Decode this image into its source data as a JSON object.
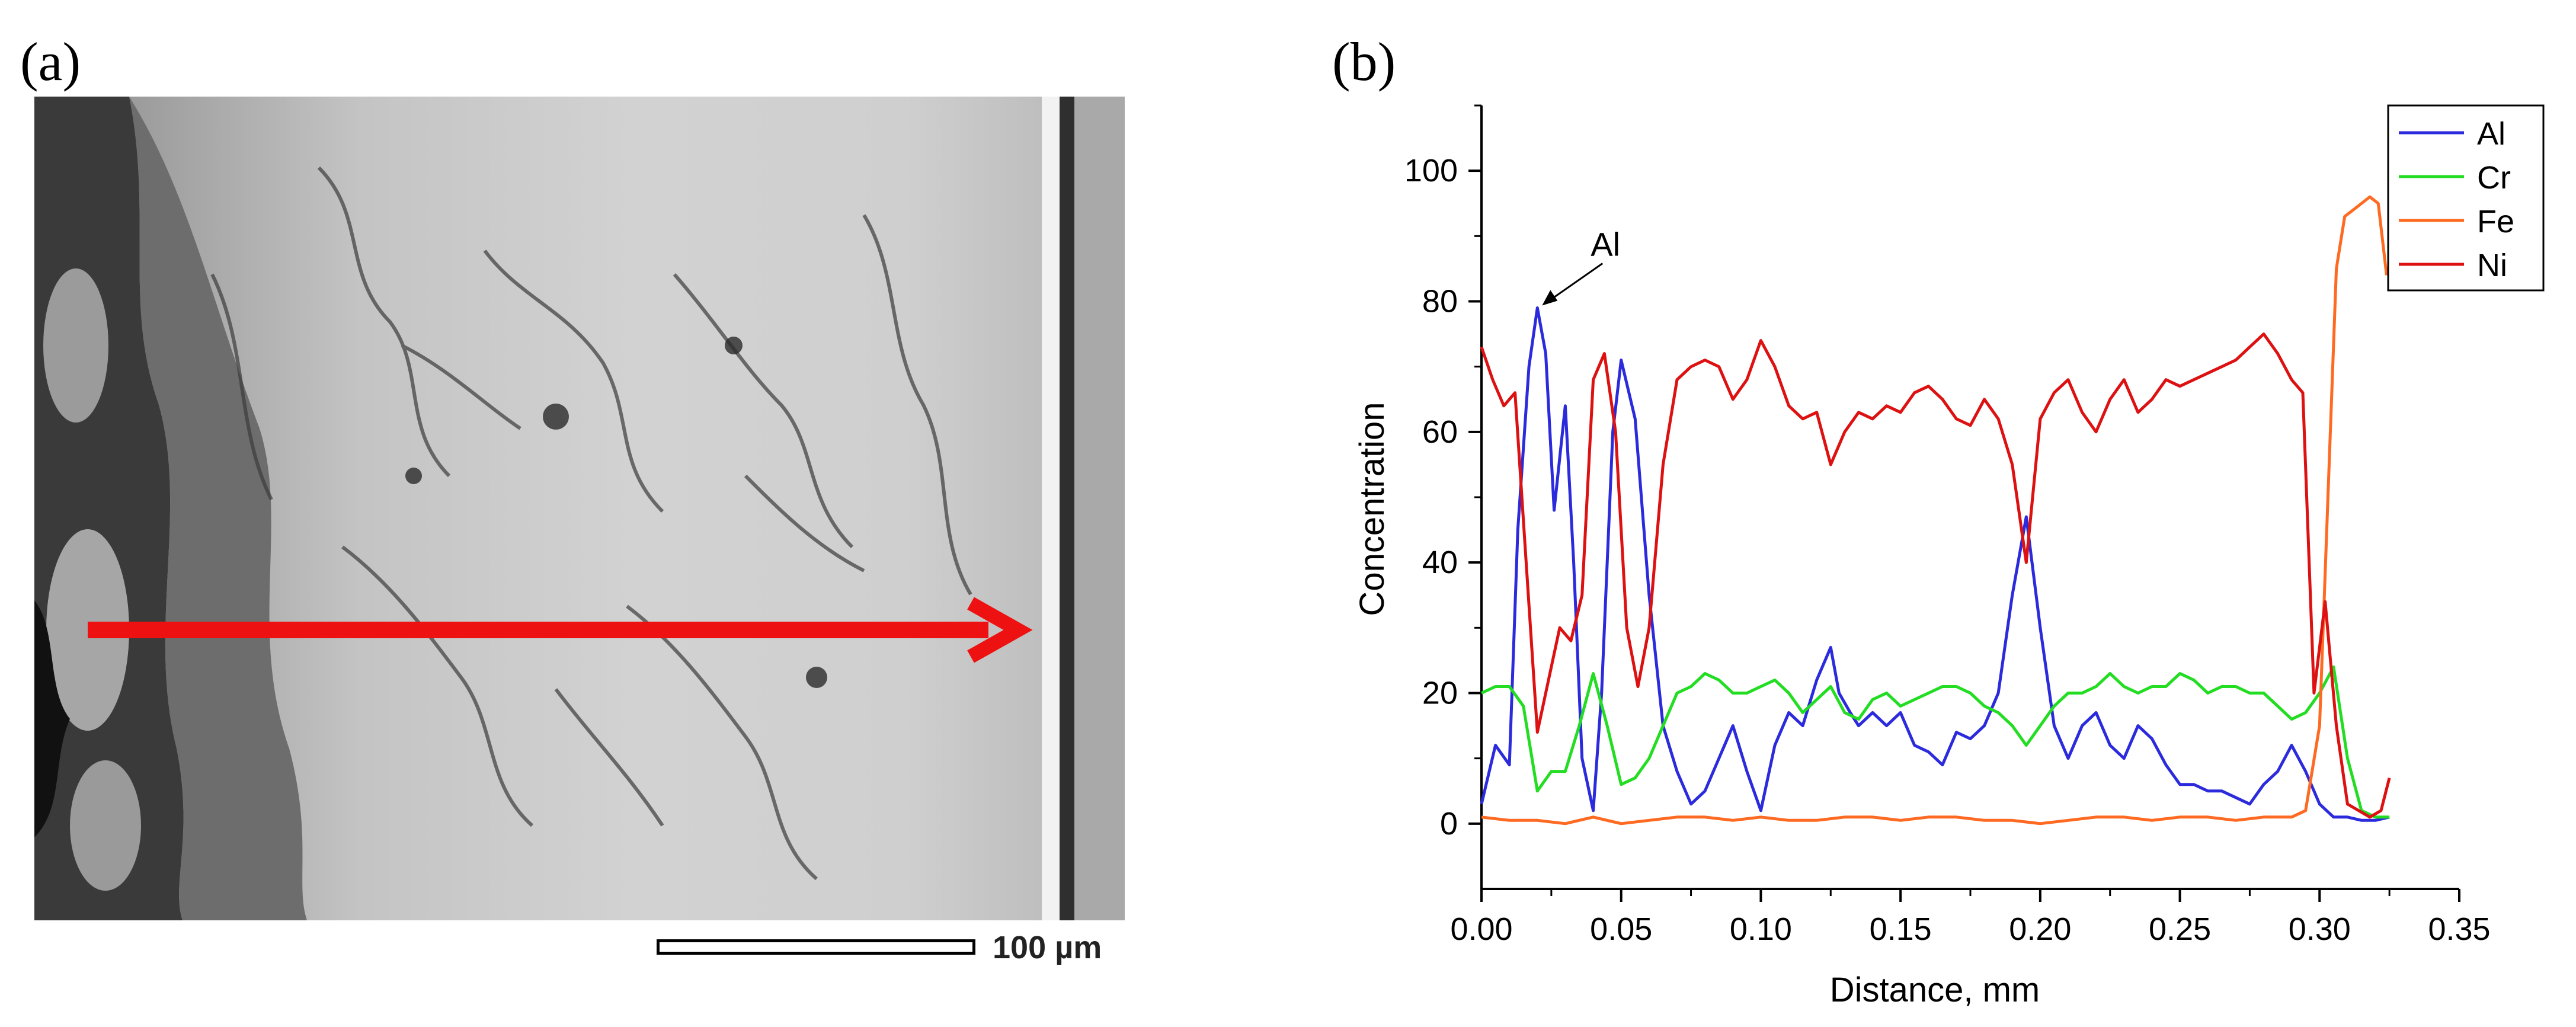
{
  "panels": {
    "a": "(a)",
    "b": "(b)"
  },
  "micrograph": {
    "scale_label": "100 µm",
    "arrow_color": "#ee1111"
  },
  "chart_data": {
    "type": "line",
    "xlabel": "Distance, mm",
    "ylabel": "Concentration",
    "xlim": [
      0.0,
      0.35
    ],
    "ylim": [
      -10,
      110
    ],
    "xticks": [
      "0.00",
      "0.05",
      "0.10",
      "0.15",
      "0.20",
      "0.25",
      "0.30",
      "0.35"
    ],
    "yticks": [
      "0",
      "20",
      "40",
      "60",
      "80",
      "100"
    ],
    "legend_position": "top-right",
    "annotation": {
      "text": "Al",
      "x": 0.02,
      "y": 79
    },
    "series": [
      {
        "name": "Al",
        "color": "#2b2bdd",
        "x": [
          0,
          0.005,
          0.01,
          0.013,
          0.017,
          0.02,
          0.023,
          0.026,
          0.03,
          0.033,
          0.036,
          0.04,
          0.043,
          0.047,
          0.05,
          0.055,
          0.06,
          0.065,
          0.07,
          0.075,
          0.08,
          0.085,
          0.09,
          0.095,
          0.1,
          0.105,
          0.11,
          0.115,
          0.12,
          0.125,
          0.128,
          0.132,
          0.135,
          0.14,
          0.145,
          0.15,
          0.155,
          0.16,
          0.165,
          0.17,
          0.175,
          0.18,
          0.185,
          0.19,
          0.195,
          0.2,
          0.205,
          0.21,
          0.215,
          0.22,
          0.225,
          0.23,
          0.235,
          0.24,
          0.245,
          0.25,
          0.255,
          0.26,
          0.265,
          0.27,
          0.275,
          0.28,
          0.285,
          0.29,
          0.295,
          0.3,
          0.305,
          0.31,
          0.315,
          0.32,
          0.325
        ],
        "y": [
          3,
          12,
          9,
          45,
          70,
          79,
          72,
          48,
          64,
          40,
          10,
          2,
          20,
          60,
          71,
          62,
          35,
          15,
          8,
          3,
          5,
          10,
          15,
          8,
          2,
          12,
          17,
          15,
          22,
          27,
          20,
          17,
          15,
          17,
          15,
          17,
          12,
          11,
          9,
          14,
          13,
          15,
          20,
          35,
          47,
          30,
          15,
          10,
          15,
          17,
          12,
          10,
          15,
          13,
          9,
          6,
          6,
          5,
          5,
          4,
          3,
          6,
          8,
          12,
          8,
          3,
          1,
          1,
          0.5,
          0.5,
          1
        ]
      },
      {
        "name": "Cr",
        "color": "#22dd22",
        "x": [
          0,
          0.005,
          0.01,
          0.015,
          0.02,
          0.025,
          0.03,
          0.035,
          0.04,
          0.045,
          0.05,
          0.055,
          0.06,
          0.065,
          0.07,
          0.075,
          0.08,
          0.085,
          0.09,
          0.095,
          0.1,
          0.105,
          0.11,
          0.115,
          0.12,
          0.125,
          0.13,
          0.135,
          0.14,
          0.145,
          0.15,
          0.155,
          0.16,
          0.165,
          0.17,
          0.175,
          0.18,
          0.185,
          0.19,
          0.195,
          0.2,
          0.205,
          0.21,
          0.215,
          0.22,
          0.225,
          0.23,
          0.235,
          0.24,
          0.245,
          0.25,
          0.255,
          0.26,
          0.265,
          0.27,
          0.275,
          0.28,
          0.285,
          0.29,
          0.295,
          0.3,
          0.305,
          0.31,
          0.315,
          0.32,
          0.325
        ],
        "y": [
          20,
          21,
          21,
          18,
          5,
          8,
          8,
          15,
          23,
          15,
          6,
          7,
          10,
          15,
          20,
          21,
          23,
          22,
          20,
          20,
          21,
          22,
          20,
          17,
          19,
          21,
          17,
          16,
          19,
          20,
          18,
          19,
          20,
          21,
          21,
          20,
          18,
          17,
          15,
          12,
          15,
          18,
          20,
          20,
          21,
          23,
          21,
          20,
          21,
          21,
          23,
          22,
          20,
          21,
          21,
          20,
          20,
          18,
          16,
          17,
          20,
          24,
          10,
          2,
          1,
          1
        ]
      },
      {
        "name": "Fe",
        "color": "#ff6a22",
        "x": [
          0,
          0.01,
          0.02,
          0.03,
          0.04,
          0.05,
          0.06,
          0.07,
          0.08,
          0.09,
          0.1,
          0.11,
          0.12,
          0.13,
          0.14,
          0.15,
          0.16,
          0.17,
          0.18,
          0.19,
          0.2,
          0.21,
          0.22,
          0.23,
          0.24,
          0.25,
          0.26,
          0.27,
          0.28,
          0.29,
          0.295,
          0.3,
          0.303,
          0.306,
          0.309,
          0.312,
          0.315,
          0.318,
          0.321,
          0.324
        ],
        "y": [
          1,
          0.5,
          0.5,
          0,
          1,
          0,
          0.5,
          1,
          1,
          0.5,
          1,
          0.5,
          0.5,
          1,
          1,
          0.5,
          1,
          1,
          0.5,
          0.5,
          0,
          0.5,
          1,
          1,
          0.5,
          1,
          1,
          0.5,
          1,
          1,
          2,
          15,
          50,
          85,
          93,
          94,
          95,
          96,
          95,
          84
        ]
      },
      {
        "name": "Ni",
        "color": "#dd1111",
        "x": [
          0,
          0.004,
          0.008,
          0.012,
          0.016,
          0.02,
          0.024,
          0.028,
          0.032,
          0.036,
          0.04,
          0.044,
          0.048,
          0.052,
          0.056,
          0.06,
          0.065,
          0.07,
          0.075,
          0.08,
          0.085,
          0.09,
          0.095,
          0.1,
          0.105,
          0.11,
          0.115,
          0.12,
          0.125,
          0.13,
          0.135,
          0.14,
          0.145,
          0.15,
          0.155,
          0.16,
          0.165,
          0.17,
          0.175,
          0.18,
          0.185,
          0.19,
          0.195,
          0.2,
          0.205,
          0.21,
          0.215,
          0.22,
          0.225,
          0.23,
          0.235,
          0.24,
          0.245,
          0.25,
          0.255,
          0.26,
          0.265,
          0.27,
          0.275,
          0.28,
          0.285,
          0.29,
          0.294,
          0.298,
          0.302,
          0.306,
          0.31,
          0.314,
          0.318,
          0.322,
          0.325
        ],
        "y": [
          73,
          68,
          64,
          66,
          40,
          14,
          22,
          30,
          28,
          35,
          68,
          72,
          60,
          30,
          21,
          30,
          55,
          68,
          70,
          71,
          70,
          65,
          68,
          74,
          70,
          64,
          62,
          63,
          55,
          60,
          63,
          62,
          64,
          63,
          66,
          67,
          65,
          62,
          61,
          65,
          62,
          55,
          40,
          62,
          66,
          68,
          63,
          60,
          65,
          68,
          63,
          65,
          68,
          67,
          68,
          69,
          70,
          71,
          73,
          75,
          72,
          68,
          66,
          20,
          34,
          15,
          3,
          2,
          1,
          2,
          7
        ]
      }
    ]
  }
}
